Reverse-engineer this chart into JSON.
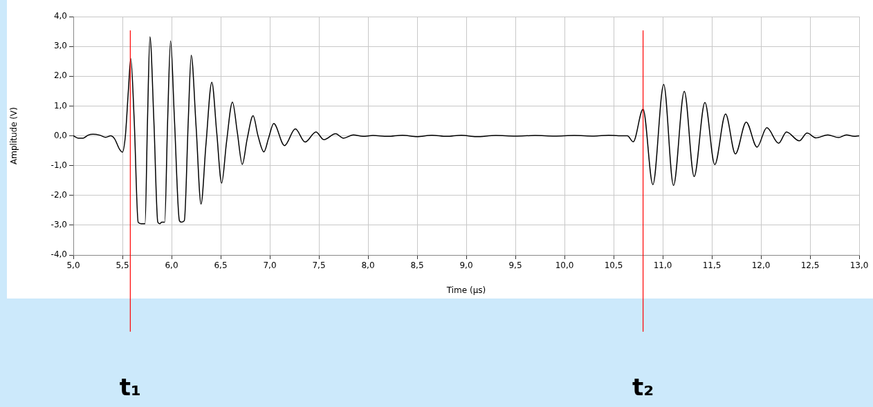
{
  "chart_data": {
    "type": "line",
    "xlabel": "Time (µs)",
    "ylabel": "Amplitude (V)",
    "x": [
      5.0,
      5.05,
      5.1,
      5.15,
      5.2,
      5.27,
      5.33,
      5.38,
      5.42,
      5.47,
      5.5,
      5.53,
      5.56,
      5.585,
      5.62,
      5.66,
      5.69,
      5.73,
      5.755,
      5.78,
      5.82,
      5.86,
      5.88,
      5.9,
      5.93,
      5.96,
      5.99,
      6.03,
      6.08,
      6.1,
      6.13,
      6.17,
      6.2,
      6.25,
      6.3,
      6.35,
      6.41,
      6.46,
      6.51,
      6.56,
      6.62,
      6.67,
      6.72,
      6.77,
      6.83,
      6.88,
      6.94,
      6.99,
      7.04,
      7.15,
      7.26,
      7.36,
      7.47,
      7.55,
      7.67,
      7.75,
      7.85,
      7.95,
      8.05,
      8.2,
      8.35,
      8.5,
      8.65,
      8.8,
      8.95,
      9.1,
      9.3,
      9.5,
      9.7,
      9.9,
      10.1,
      10.3,
      10.45,
      10.55,
      10.64,
      10.7,
      10.8,
      10.9,
      11.01,
      11.11,
      11.22,
      11.32,
      11.43,
      11.53,
      11.64,
      11.74,
      11.85,
      11.96,
      12.06,
      12.18,
      12.26,
      12.39,
      12.47,
      12.56,
      12.68,
      12.79,
      12.87,
      12.95,
      13.0
    ],
    "series": [
      {
        "color": "#000000",
        "values": [
          0.0,
          -0.08,
          -0.08,
          0.02,
          0.05,
          0.02,
          -0.05,
          0.0,
          -0.1,
          -0.45,
          -0.55,
          0.0,
          1.5,
          2.59,
          0.5,
          -2.9,
          -2.95,
          -2.95,
          0.5,
          3.32,
          0.5,
          -2.9,
          -2.95,
          -2.9,
          -2.9,
          0.5,
          3.18,
          0.5,
          -2.85,
          -2.9,
          -2.85,
          0.5,
          2.7,
          0.3,
          -2.29,
          -0.3,
          1.8,
          0.1,
          -1.59,
          -0.2,
          1.13,
          0.1,
          -0.96,
          -0.1,
          0.67,
          0.0,
          -0.54,
          -0.05,
          0.41,
          -0.33,
          0.23,
          -0.21,
          0.13,
          -0.13,
          0.07,
          -0.08,
          0.03,
          -0.02,
          0.01,
          -0.02,
          0.02,
          -0.03,
          0.02,
          -0.02,
          0.02,
          -0.03,
          0.01,
          -0.01,
          0.01,
          -0.01,
          0.01,
          -0.01,
          0.02,
          0.0,
          0.0,
          -0.2,
          0.89,
          -1.64,
          1.72,
          -1.67,
          1.49,
          -1.37,
          1.12,
          -0.97,
          0.73,
          -0.61,
          0.46,
          -0.38,
          0.27,
          -0.25,
          0.13,
          -0.17,
          0.09,
          -0.07,
          0.03,
          -0.06,
          0.03,
          -0.02,
          0.0
        ]
      }
    ],
    "xlim": [
      5.0,
      13.0
    ],
    "xticks": [
      {
        "value": 5.0,
        "label": "5,0"
      },
      {
        "value": 5.5,
        "label": "5,5"
      },
      {
        "value": 6.0,
        "label": "6,0"
      },
      {
        "value": 6.5,
        "label": "6,5"
      },
      {
        "value": 7.0,
        "label": "7,0"
      },
      {
        "value": 7.5,
        "label": "7,5"
      },
      {
        "value": 8.0,
        "label": "8,0"
      },
      {
        "value": 8.5,
        "label": "8,5"
      },
      {
        "value": 9.0,
        "label": "9,0"
      },
      {
        "value": 9.5,
        "label": "9,5"
      },
      {
        "value": 10.0,
        "label": "10,0"
      },
      {
        "value": 10.5,
        "label": "10,5"
      },
      {
        "value": 11.0,
        "label": "11,0"
      },
      {
        "value": 11.5,
        "label": "11,5"
      },
      {
        "value": 12.0,
        "label": "12,0"
      },
      {
        "value": 12.5,
        "label": "12,5"
      },
      {
        "value": 13.0,
        "label": "13,0"
      }
    ],
    "ylim": [
      -4.0,
      4.0
    ],
    "yticks": [
      {
        "value": -4.0,
        "label": "-4,0"
      },
      {
        "value": -3.0,
        "label": "-3,0"
      },
      {
        "value": -2.0,
        "label": "-2,0"
      },
      {
        "value": -1.0,
        "label": "-1,0"
      },
      {
        "value": 0.0,
        "label": "0,0"
      },
      {
        "value": 1.0,
        "label": "1,0"
      },
      {
        "value": 2.0,
        "label": "2,0"
      },
      {
        "value": 3.0,
        "label": "3,0"
      },
      {
        "value": 4.0,
        "label": "4,0"
      }
    ],
    "ref_lines": [
      {
        "axis": "x",
        "value": 5.58,
        "label": "t₁",
        "color": "#ff0000"
      },
      {
        "axis": "x",
        "value": 10.8,
        "label": "t₂",
        "color": "#ff0000"
      }
    ],
    "grid": true,
    "marker": "none",
    "line_style": "solid"
  }
}
